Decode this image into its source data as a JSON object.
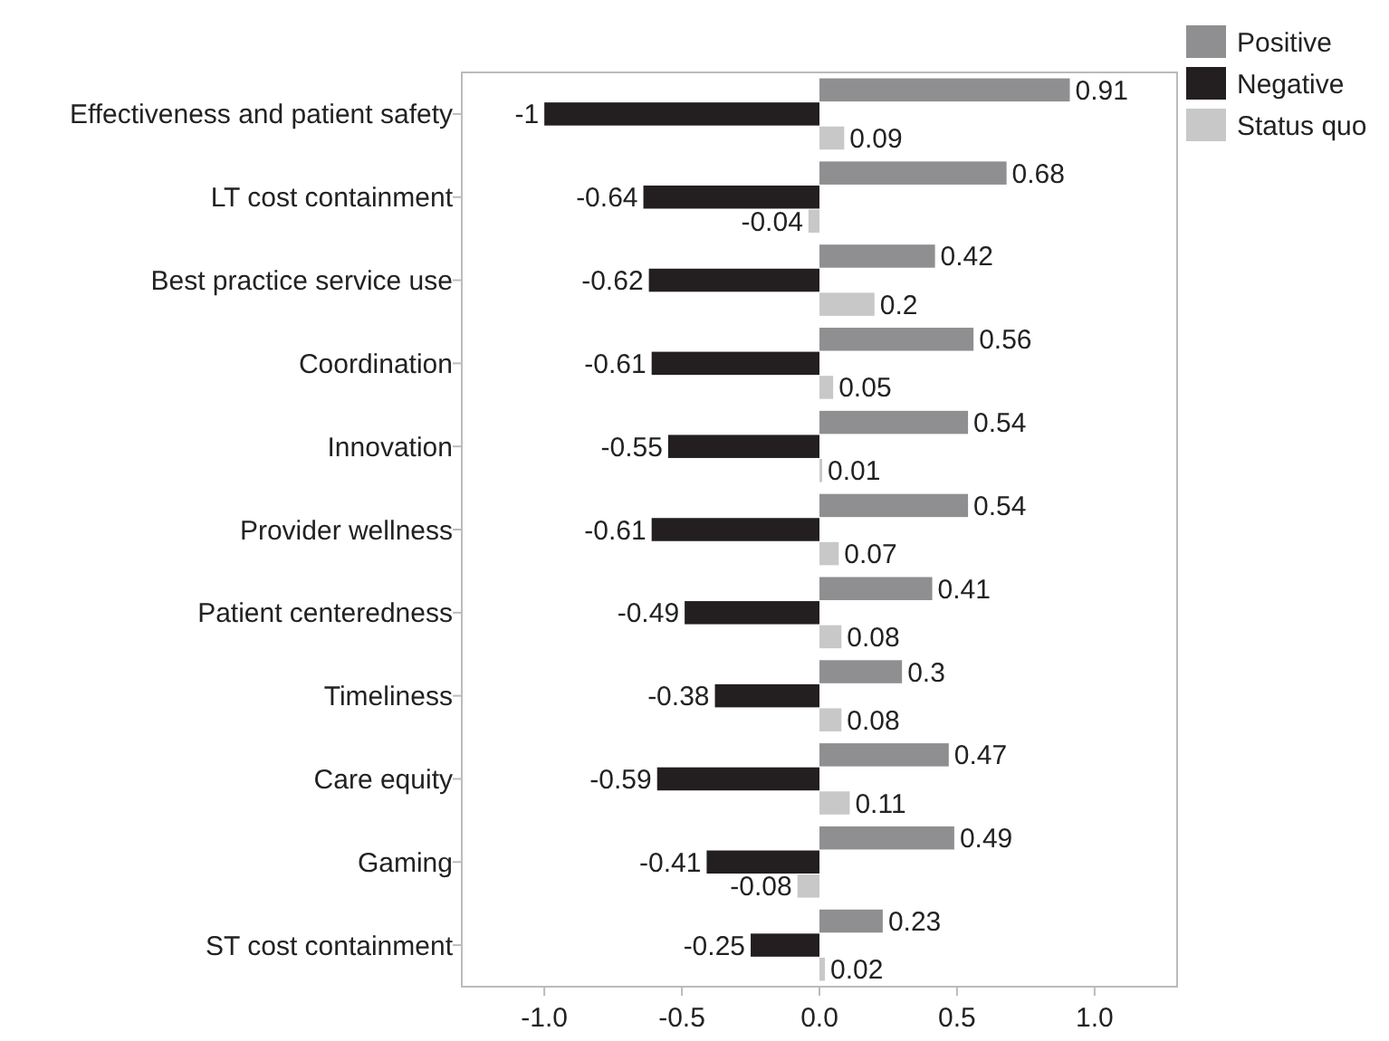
{
  "chart_data": {
    "type": "bar",
    "orientation": "horizontal",
    "categories": [
      "Effectiveness and patient safety",
      "LT cost containment",
      "Best practice service use",
      "Coordination",
      "Innovation",
      "Provider wellness",
      "Patient centeredness",
      "Timeliness",
      "Care equity",
      "Gaming",
      "ST cost containment"
    ],
    "series": [
      {
        "name": "Positive",
        "color": "#8f8f91",
        "values": [
          0.91,
          0.68,
          0.42,
          0.56,
          0.54,
          0.54,
          0.41,
          0.3,
          0.47,
          0.49,
          0.23
        ]
      },
      {
        "name": "Negative",
        "color": "#231f20",
        "values": [
          -1,
          -0.64,
          -0.62,
          -0.61,
          -0.55,
          -0.61,
          -0.49,
          -0.38,
          -0.59,
          -0.41,
          -0.25
        ]
      },
      {
        "name": "Status quo",
        "color": "#c8c8c8",
        "values": [
          0.09,
          -0.04,
          0.2,
          0.05,
          0.01,
          0.07,
          0.08,
          0.08,
          0.11,
          -0.08,
          0.02
        ]
      }
    ],
    "xlim": [
      -1.3,
      1.3
    ],
    "xticks": [
      {
        "value": -1,
        "label": "-1.0"
      },
      {
        "value": -0.5,
        "label": "-0.5"
      },
      {
        "value": 0,
        "label": "0.0"
      },
      {
        "value": 0.5,
        "label": "0.5"
      },
      {
        "value": 1,
        "label": "1.0"
      }
    ],
    "data_labels": true,
    "legend": "top right",
    "grid": false
  }
}
